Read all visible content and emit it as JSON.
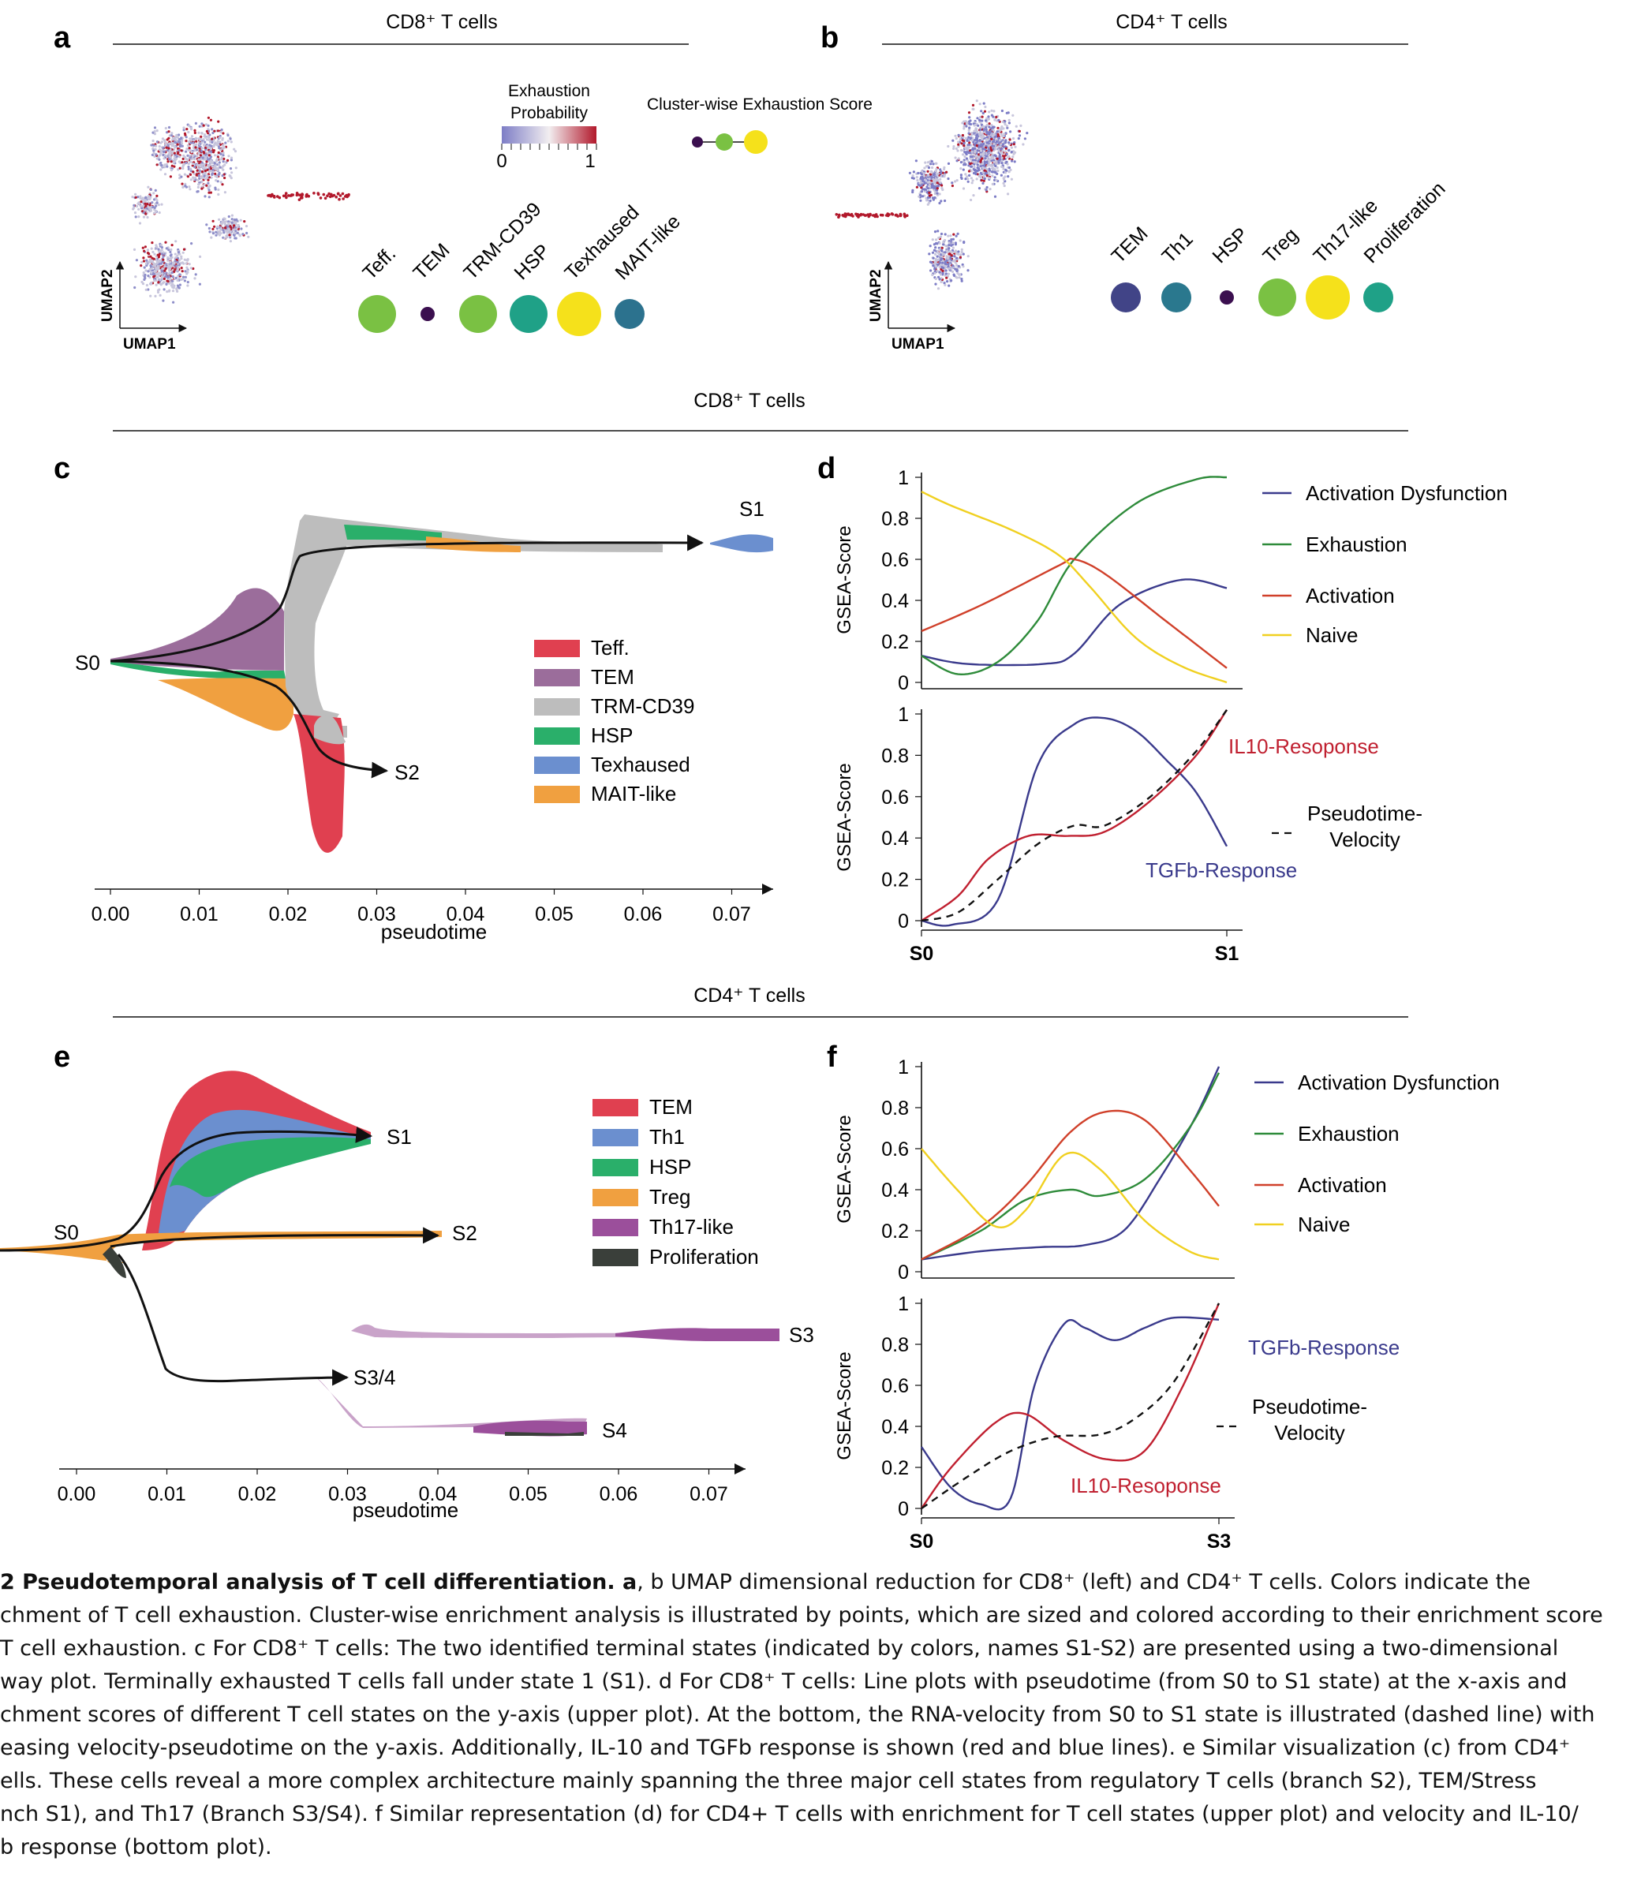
{
  "panels": {
    "a": {
      "letter": "a",
      "section": "CD8⁺ T cells",
      "umap_x": "UMAP1",
      "umap_y": "UMAP2",
      "colorbar_title": [
        "Exhaustion",
        "Probability"
      ],
      "colorbar_ticks": [
        "0",
        "1"
      ],
      "cluster_title": "Cluster-wise Exhaustion Score",
      "clusters": [
        {
          "label": "Teff.",
          "size": "large",
          "color": "#7ac143"
        },
        {
          "label": "TEM",
          "size": "small",
          "color": "#3b0f4f"
        },
        {
          "label": "TRM-CD39",
          "size": "large",
          "color": "#7ac143"
        },
        {
          "label": "HSP",
          "size": "large",
          "color": "#1fa187"
        },
        {
          "label": "Texhaused",
          "size": "xlarge",
          "color": "#f5e11b"
        },
        {
          "label": "MAIT-like",
          "size": "medium",
          "color": "#2c728e"
        }
      ]
    },
    "b": {
      "letter": "b",
      "section": "CD4⁺ T cells",
      "umap_x": "UMAP1",
      "umap_y": "UMAP2",
      "clusters": [
        {
          "label": "TEM",
          "size": "medium",
          "color": "#414487"
        },
        {
          "label": "Th1",
          "size": "medium",
          "color": "#2a788e"
        },
        {
          "label": "HSP",
          "size": "small",
          "color": "#3b0f4f"
        },
        {
          "label": "Treg",
          "size": "large",
          "color": "#7ac143"
        },
        {
          "label": "Th17-like",
          "size": "xlarge",
          "color": "#f5e11b"
        },
        {
          "label": "Proliferation",
          "size": "medium",
          "color": "#1fa187"
        }
      ]
    },
    "c": {
      "letter": "c",
      "section": "CD8⁺ T cells",
      "xlabel": "pseudotime",
      "ticks": [
        "0.00",
        "0.01",
        "0.02",
        "0.03",
        "0.04",
        "0.05",
        "0.06",
        "0.07"
      ],
      "states": [
        "S0",
        "S1",
        "S2"
      ],
      "legend": [
        {
          "label": "Teff.",
          "color": "#e04050"
        },
        {
          "label": "TEM",
          "color": "#9b6d9b"
        },
        {
          "label": "TRM-CD39",
          "color": "#bdbdbd"
        },
        {
          "label": "HSP",
          "color": "#2aaf6a"
        },
        {
          "label": "Texhaused",
          "color": "#6b8fcf"
        },
        {
          "label": "MAIT-like",
          "color": "#f0a040"
        }
      ]
    },
    "d": {
      "letter": "d",
      "ylabel": "GSEA-Score",
      "yticks": [
        "1",
        "0.8",
        "0.6",
        "0.4",
        "0.2",
        "0"
      ],
      "x_start": "S0",
      "x_end": "S1",
      "legend": [
        {
          "label": "Activation Dysfunction",
          "color": "#3a3a8c"
        },
        {
          "label": "Exhaustion",
          "color": "#2e8b3a"
        },
        {
          "label": "Activation",
          "color": "#d0402a"
        },
        {
          "label": "Naive",
          "color": "#f0d020"
        }
      ],
      "bottom_labels": {
        "il10": "IL10-Resoponse",
        "tgfb": "TGFb-Response",
        "velocity": [
          "Pseudotime-",
          "Velocity"
        ]
      }
    },
    "e": {
      "letter": "e",
      "section": "CD4⁺ T cells",
      "xlabel": "pseudotime",
      "ticks": [
        "0.00",
        "0.01",
        "0.02",
        "0.03",
        "0.04",
        "0.05",
        "0.06",
        "0.07"
      ],
      "states": [
        "S0",
        "S1",
        "S2",
        "S3",
        "S3/4",
        "S4"
      ],
      "legend": [
        {
          "label": "TEM",
          "color": "#e04050"
        },
        {
          "label": "Th1",
          "color": "#6b8fcf"
        },
        {
          "label": "HSP",
          "color": "#2aaf6a"
        },
        {
          "label": "Treg",
          "color": "#f0a040"
        },
        {
          "label": "Th17-like",
          "color": "#9b4f9b"
        },
        {
          "label": "Proliferation",
          "color": "#3a3f3a"
        }
      ]
    },
    "f": {
      "letter": "f",
      "ylabel": "GSEA-Score",
      "yticks": [
        "1",
        "0.8",
        "0.6",
        "0.4",
        "0.2",
        "0"
      ],
      "x_start": "S0",
      "x_end": "S3",
      "legend": [
        {
          "label": "Activation Dysfunction",
          "color": "#3a3a8c"
        },
        {
          "label": "Exhaustion",
          "color": "#2e8b3a"
        },
        {
          "label": "Activation",
          "color": "#d0402a"
        },
        {
          "label": "Naive",
          "color": "#f0d020"
        }
      ],
      "bottom_labels": {
        "il10": "IL10-Resoponse",
        "tgfb": "TGFb-Response",
        "velocity": [
          "Pseudotime-",
          "Velocity"
        ]
      }
    }
  },
  "caption": {
    "lines": [
      {
        "bold": "2 Pseudotemporal analysis of T cell differentiation. a",
        "text": ", b UMAP dimensional reduction for CD8⁺ (left) and CD4⁺ T cells. Colors indicate the"
      },
      {
        "text": "chment of T cell exhaustion. Cluster-wise enrichment analysis is illustrated by points, which are sized and colored according to their enrichment score"
      },
      {
        "text": "T cell exhaustion. c For CD8⁺ T cells: The two identified terminal states (indicated by colors, names S1-S2) are presented using a two-dimensional"
      },
      {
        "text": "way plot. Terminally exhausted T cells fall under state 1 (S1). d For CD8⁺ T cells: Line plots with pseudotime (from S0 to S1 state) at the x-axis and"
      },
      {
        "text": "chment scores of different T cell states on the y-axis (upper plot). At the bottom, the RNA-velocity from S0 to S1 state is illustrated (dashed line) with"
      },
      {
        "text": "easing velocity-pseudotime on the y-axis. Additionally, IL-10 and TGFb response is shown (red and blue lines). e Similar visualization (c) from CD4⁺"
      },
      {
        "text": "ells. These cells reveal a more complex architecture mainly spanning the three major cell states from regulatory T cells (branch S2), TEM/Stress"
      },
      {
        "text": "nch S1), and Th17 (Branch S3/S4). f Similar representation (d) for CD4+ T cells with enrichment for T cell states (upper plot) and velocity and IL-10/"
      },
      {
        "text": "b response (bottom plot)."
      }
    ]
  }
}
